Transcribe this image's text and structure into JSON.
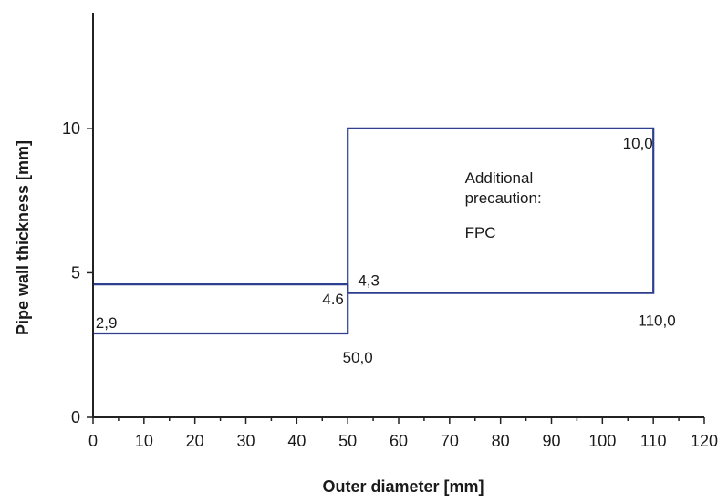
{
  "chart_data": {
    "type": "line",
    "title": "",
    "xlabel": "Outer diameter [mm]",
    "ylabel": "Pipe wall thickness [mm]",
    "xlim": [
      0,
      120
    ],
    "ylim": [
      0,
      14
    ],
    "x_ticks": [
      0,
      10,
      20,
      30,
      40,
      50,
      60,
      70,
      80,
      90,
      100,
      110,
      120
    ],
    "x_tick_labels": [
      "0",
      "10",
      "20",
      "30",
      "40",
      "50",
      "60",
      "70",
      "80",
      "90",
      "100",
      "110",
      "120"
    ],
    "y_ticks": [
      0,
      5,
      10
    ],
    "y_tick_labels": [
      "0",
      "5",
      "10"
    ],
    "grid": false,
    "line_color": "#2e3f8f",
    "series": [
      {
        "x": [
          0,
          50,
          50,
          0
        ],
        "y": [
          4.6,
          4.6,
          2.9,
          2.9
        ]
      },
      {
        "x": [
          50,
          50,
          110,
          110,
          50
        ],
        "y": [
          4.3,
          10.0,
          10.0,
          4.3,
          4.3
        ]
      }
    ],
    "annotations": [
      {
        "text": "2,9",
        "x": 0.5,
        "y": 2.9
      },
      {
        "text": "4.6",
        "x": 45,
        "y": 4.6
      },
      {
        "text": "50,0",
        "x": 49,
        "y": 2.9
      },
      {
        "text": "4,3",
        "x": 52,
        "y": 4.3
      },
      {
        "text": "10,0",
        "x": 104,
        "y": 10.0
      },
      {
        "text": "110,0",
        "x": 107,
        "y": 4.3
      },
      {
        "text": "Additional",
        "x": 73,
        "y": 8.3
      },
      {
        "text": "precaution:",
        "x": 73,
        "y": 7.6
      },
      {
        "text": "FPC",
        "x": 73,
        "y": 6.4
      }
    ]
  }
}
